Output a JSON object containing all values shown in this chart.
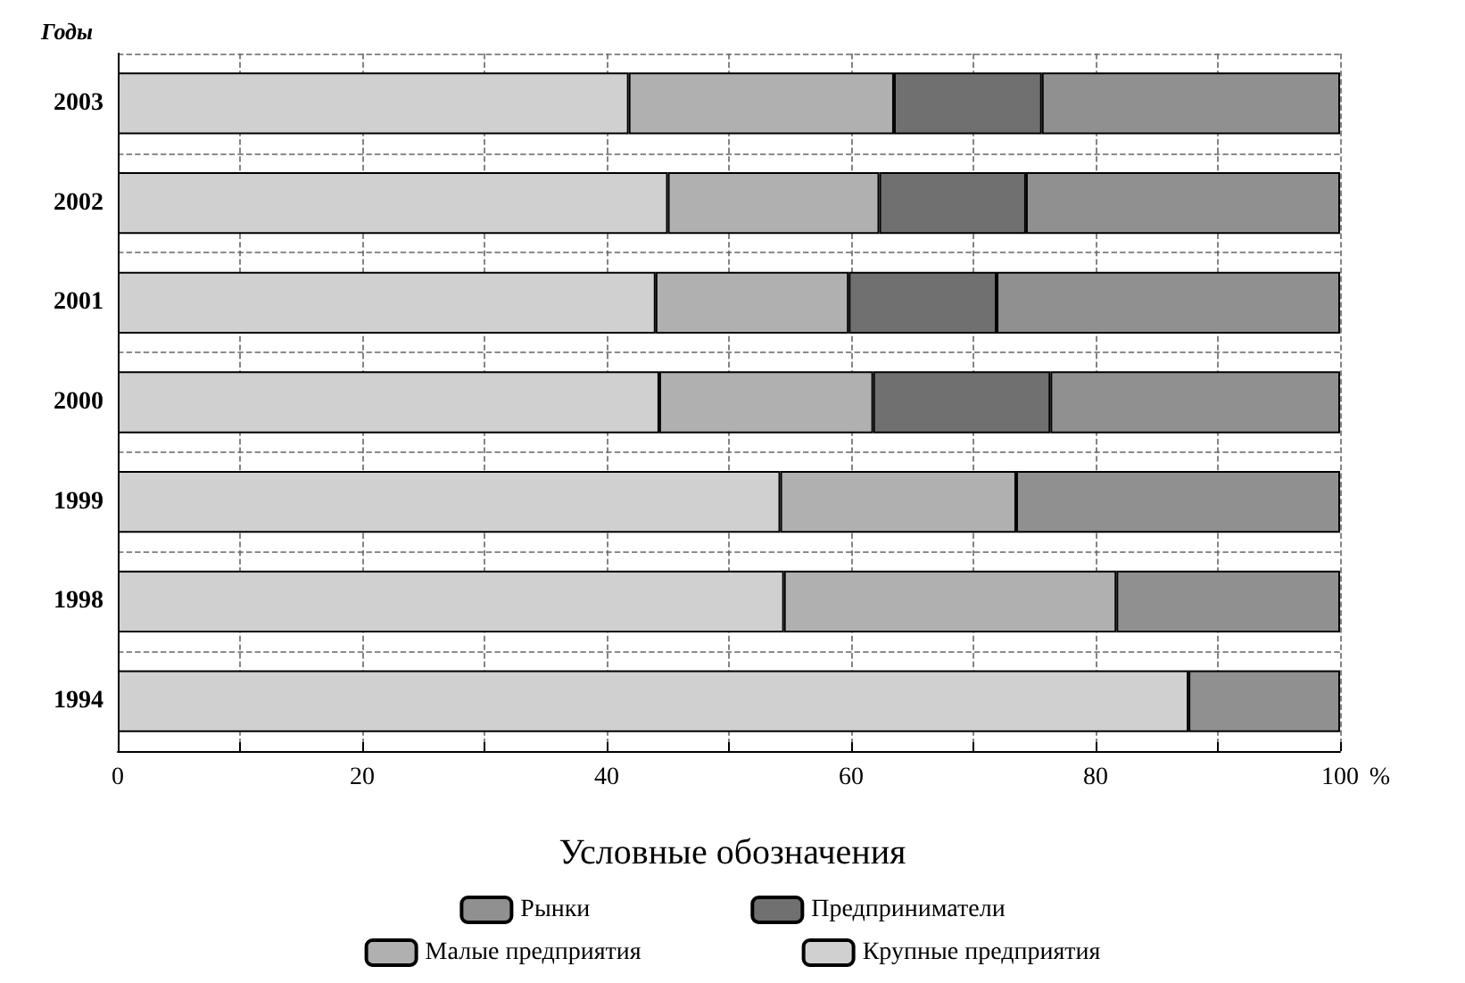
{
  "chart_data": {
    "type": "bar",
    "orientation": "horizontal",
    "stacked": true,
    "ylabel": "Годы",
    "xlabel": "%",
    "legend_title": "Условные обозначения",
    "categories": [
      "2003",
      "2002",
      "2001",
      "2000",
      "1999",
      "1998",
      "1994"
    ],
    "series": [
      {
        "name": "Крупные предприятия",
        "color": "#d0d0d0",
        "values": [
          41.8,
          45.0,
          44.0,
          44.3,
          54.2,
          54.5,
          87.6
        ]
      },
      {
        "name": "Малые предприятия",
        "color": "#b0b0b0",
        "values": [
          21.7,
          17.3,
          15.8,
          17.5,
          19.3,
          27.2,
          null
        ]
      },
      {
        "name": "Предприниматели",
        "color": "#707070",
        "values": [
          12.1,
          12.0,
          12.1,
          14.5,
          null,
          null,
          null
        ]
      },
      {
        "name": "Рынки",
        "color": "#909090",
        "values": [
          24.4,
          25.7,
          28.1,
          23.7,
          26.5,
          18.3,
          12.4
        ]
      }
    ],
    "xlim": [
      0,
      100
    ],
    "xticks": [
      0,
      {
        "value": 10,
        "label": null
      },
      20,
      {
        "value": 30,
        "label": null
      },
      40,
      {
        "value": 50,
        "label": null
      },
      60,
      {
        "value": 70,
        "label": null
      },
      80,
      {
        "value": 90,
        "label": null
      },
      100
    ],
    "grid": true,
    "legend": "bottom"
  }
}
